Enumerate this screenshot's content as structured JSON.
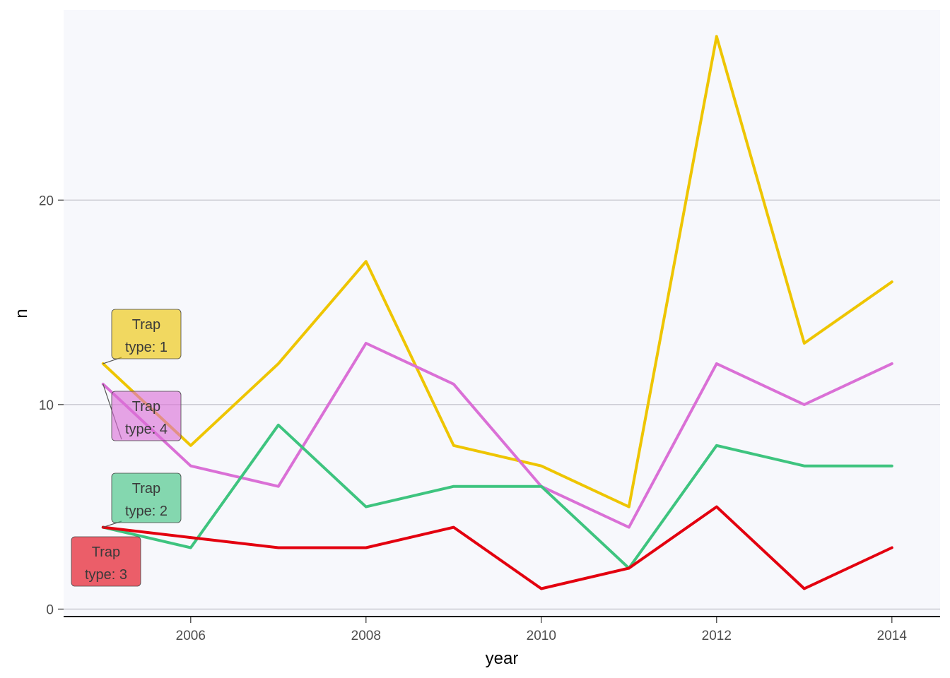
{
  "chart_data": {
    "type": "line",
    "title": "",
    "xlabel": "year",
    "ylabel": "n",
    "x": [
      2005,
      2006,
      2007,
      2008,
      2009,
      2010,
      2011,
      2012,
      2013,
      2014
    ],
    "xlim": [
      2004.55,
      2014.55
    ],
    "ylim": [
      -0.4,
      29.3
    ],
    "x_ticks": [
      2006,
      2008,
      2010,
      2012,
      2014
    ],
    "y_ticks": [
      0,
      10,
      20
    ],
    "grid": "horizontal major",
    "legend": "none (direct labels at left)",
    "series": [
      {
        "name": "Trap type: 1",
        "label_line1": "Trap",
        "label_line2": "type:  1",
        "color": "#EEC500",
        "values": [
          12,
          8,
          12,
          17,
          8,
          7,
          5,
          28,
          13,
          16
        ]
      },
      {
        "name": "Trap type: 4",
        "label_line1": "Trap",
        "label_line2": "type:  4",
        "color": "#DA70D6",
        "values": [
          11,
          7,
          6,
          13,
          11,
          6,
          4,
          12,
          10,
          12
        ]
      },
      {
        "name": "Trap type: 2",
        "label_line1": "Trap",
        "label_line2": "type:  2",
        "color": "#3EC47F",
        "values": [
          4,
          3,
          9,
          5,
          6,
          6,
          2,
          8,
          7,
          7
        ]
      },
      {
        "name": "Trap type: 3",
        "label_line1": "Trap",
        "label_line2": "type:  3",
        "color": "#E3000F",
        "values": [
          4,
          3.5,
          3,
          3,
          4,
          1,
          2,
          5,
          1,
          3
        ]
      }
    ],
    "colors": {
      "panel_background": "#F7F8FC",
      "grid": "#C8C9D0",
      "axis_line": "#000000"
    }
  }
}
